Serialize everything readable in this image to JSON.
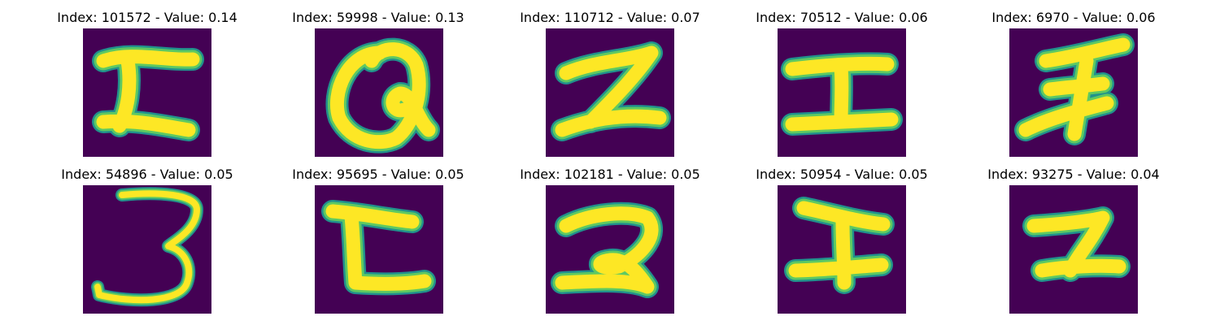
{
  "colors": {
    "background": "#440154",
    "stroke_outer": "#21918c",
    "stroke_mid": "#5ec962",
    "stroke_inner": "#fde725"
  },
  "panels": [
    {
      "index_label": "Index: 101572 - Value: 0.14",
      "glyph": "I-shape"
    },
    {
      "index_label": "Index: 59998 - Value: 0.13",
      "glyph": "Q-shape"
    },
    {
      "index_label": "Index: 110712 - Value: 0.07",
      "glyph": "Z-shape"
    },
    {
      "index_label": "Index: 70512 - Value: 0.06",
      "glyph": "I-shape"
    },
    {
      "index_label": "Index: 6970 - Value: 0.06",
      "glyph": "F-shape"
    },
    {
      "index_label": "Index: 54896 - Value: 0.05",
      "glyph": "3-shape"
    },
    {
      "index_label": "Index: 95695 - Value: 0.05",
      "glyph": "t-shape"
    },
    {
      "index_label": "Index: 102181 - Value: 0.05",
      "glyph": "2-shape"
    },
    {
      "index_label": "Index: 50954 - Value: 0.05",
      "glyph": "I-shape"
    },
    {
      "index_label": "Index: 93275 - Value: 0.04",
      "glyph": "z-shape"
    }
  ]
}
